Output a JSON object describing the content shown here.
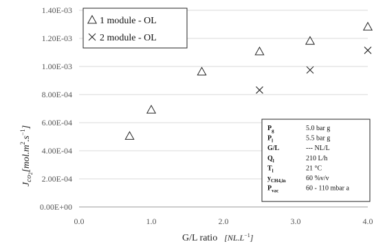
{
  "chart_data": {
    "type": "scatter",
    "xlabel_main": "G/L ratio",
    "xlabel_unit": "[NL.L",
    "xlabel_unit_sup": "−1",
    "xlabel_unit_close": "]",
    "ylabel": {
      "J": "J",
      "sub": "co",
      "sub2": "2",
      "unit": "[mol.m",
      "sup1": "2",
      "mid": ".s",
      "sup2": "−1",
      "close": "]"
    },
    "xlim": [
      0,
      4
    ],
    "ylim": [
      0,
      0.0014
    ],
    "xticks": [
      0,
      1,
      2,
      3,
      4
    ],
    "xtick_labels": [
      "0.0",
      "1.0",
      "2.0",
      "3.0",
      "4.0"
    ],
    "yticks": [
      0,
      0.0002,
      0.0004,
      0.0006,
      0.0008,
      0.001,
      0.0012,
      0.0014
    ],
    "ytick_labels": [
      "0.00E+00",
      "2.00E-04",
      "4.00E-04",
      "6.00E-04",
      "8.00E-04",
      "1.00E-03",
      "1.20E-03",
      "1.40E-03"
    ],
    "grid": "horizontal",
    "legend_position": "top-left",
    "series": [
      {
        "name": "1 module - OL",
        "marker": "triangle",
        "x": [
          0.7,
          1.0,
          1.7,
          2.5,
          3.2,
          4.0
        ],
        "y": [
          0.000505,
          0.000692,
          0.000963,
          0.001107,
          0.001182,
          0.001283
        ]
      },
      {
        "name": "2 module - OL",
        "marker": "x",
        "x": [
          2.5,
          3.2,
          4.0
        ],
        "y": [
          0.000832,
          0.000975,
          0.001115
        ]
      }
    ],
    "legend_prefix": "1 module - OL",
    "parameters": [
      {
        "name": "P",
        "sub": "g",
        "value": "5.0 bar g"
      },
      {
        "name": "P",
        "sub": "l",
        "value": "5.5 bar g"
      },
      {
        "name": "G/L",
        "sub": "",
        "value": "--- NL/L"
      },
      {
        "name": "Q",
        "sub": "l",
        "value": "210 L/h"
      },
      {
        "name": "T",
        "sub": "l",
        "value": "21 °C"
      },
      {
        "name": "y",
        "sub": "CH4,in",
        "value": "60 %v/v"
      },
      {
        "name": "P",
        "sub": "vac",
        "value": "60 - 110 mbar a"
      }
    ],
    "colors": {
      "marker": "#222222",
      "grid": "#d9d9d9",
      "axis": "#9a9a9a"
    }
  }
}
